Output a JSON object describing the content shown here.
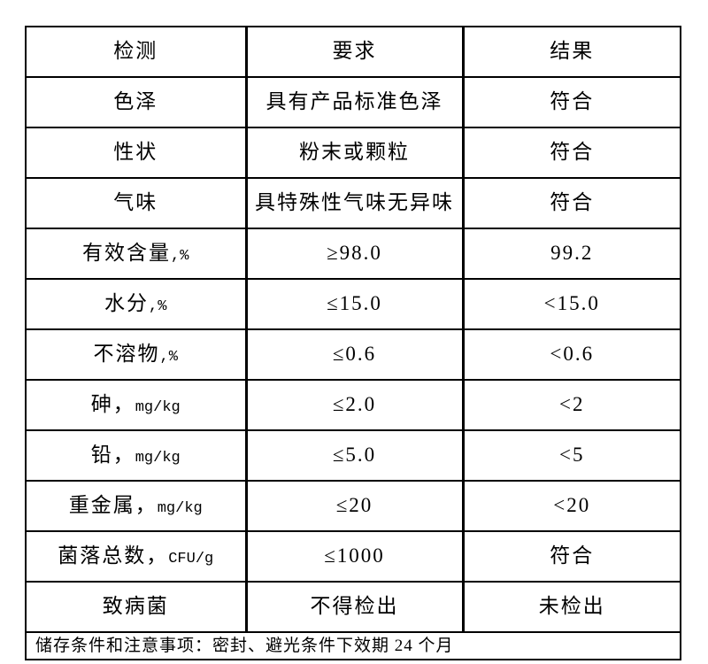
{
  "page": {
    "background_color": "#ffffff",
    "line_color": "#000000",
    "text_color": "#000000"
  },
  "table": {
    "headers": [
      "检测",
      "要求",
      "结果"
    ],
    "rows": [
      {
        "test": "色泽",
        "requirement": "具有产品标准色泽",
        "result": "符合"
      },
      {
        "test": "性状",
        "requirement": "粉末或颗粒",
        "result": "符合"
      },
      {
        "test": "气味",
        "requirement": "具特殊性气味无异味",
        "result": "符合"
      },
      {
        "test": "有效含量,%",
        "requirement": "≥98.0",
        "result": "99.2"
      },
      {
        "test": "水分,%",
        "requirement": "≤15.0",
        "result": "<15.0"
      },
      {
        "test": "不溶物,%",
        "requirement": "≤0.6",
        "result": "<0.6"
      },
      {
        "test": "砷，mg/kg",
        "requirement": "≤2.0",
        "result": "<2"
      },
      {
        "test": "铅，mg/kg",
        "requirement": "≤5.0",
        "result": "<5"
      },
      {
        "test": "重金属，mg/kg",
        "requirement": "≤20",
        "result": "<20"
      },
      {
        "test": "菌落总数，CFU/g",
        "requirement": "≤1000",
        "result": "符合"
      },
      {
        "test": "致病菌",
        "requirement": "不得检出",
        "result": "未检出"
      }
    ],
    "footer": "储存条件和注意事项：密封、避光条件下效期 24 个月"
  }
}
